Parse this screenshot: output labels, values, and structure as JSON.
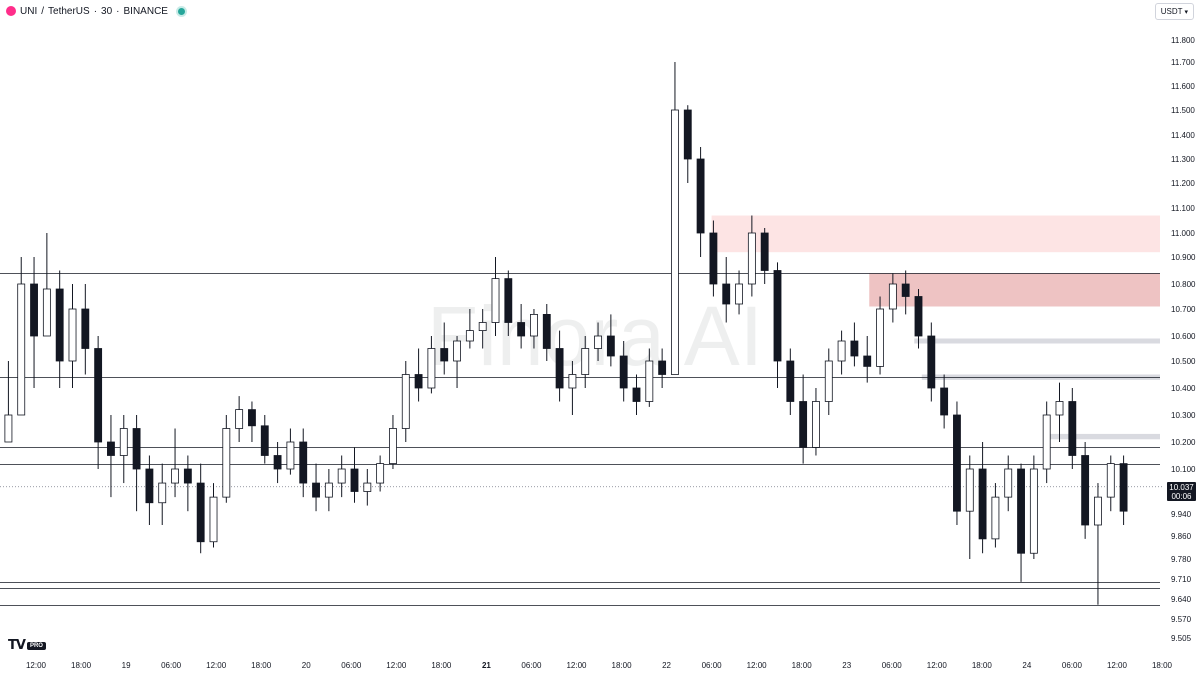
{
  "header": {
    "symbol": "UNI",
    "separator": "/",
    "quote": "TetherUS",
    "interval": "30",
    "exchange": "BINANCE"
  },
  "currency_button": {
    "label": "USDT"
  },
  "watermark": "Finora AI",
  "logo": {
    "mark": "TV",
    "badge": "PRO"
  },
  "last_price": {
    "price": "10.037",
    "countdown": "00:06"
  },
  "chart_data": {
    "type": "candlestick",
    "y_ticks": [
      "11.800",
      "11.700",
      "11.600",
      "11.500",
      "11.400",
      "11.300",
      "11.200",
      "11.100",
      "11.000",
      "10.900",
      "10.800",
      "10.700",
      "10.600",
      "10.500",
      "10.400",
      "10.300",
      "10.200",
      "10.100",
      "9.940",
      "9.860",
      "9.780",
      "9.710",
      "9.640",
      "9.570",
      "9.505"
    ],
    "x_ticks": [
      "12:00",
      "18:00",
      "19",
      "06:00",
      "12:00",
      "18:00",
      "20",
      "06:00",
      "12:00",
      "18:00",
      "21",
      "06:00",
      "12:00",
      "18:00",
      "22",
      "06:00",
      "12:00",
      "18:00",
      "23",
      "06:00",
      "12:00",
      "18:00",
      "24",
      "06:00",
      "12:00",
      "18:00"
    ],
    "bold_x_ticks": [
      "21"
    ],
    "horizontal_levels": [
      10.84,
      10.44,
      10.18,
      10.12,
      9.7,
      9.68,
      9.62
    ],
    "zones": [
      {
        "x_start": "22 06:00",
        "x_end": "24 18:00",
        "y_low": 10.92,
        "y_high": 11.07,
        "color": "#fde4e4"
      },
      {
        "x_start": "23 03:00",
        "x_end": "24 18:00",
        "y_low": 10.71,
        "y_high": 10.84,
        "color": "#eec3c3"
      },
      {
        "x_start": "23 09:00",
        "x_end": "24 18:00",
        "y_low": 10.57,
        "y_high": 10.59,
        "color": "#d9dae0"
      },
      {
        "x_start": "23 10:00",
        "x_end": "24 18:00",
        "y_low": 10.43,
        "y_high": 10.45,
        "color": "#d9dae0"
      },
      {
        "x_start": "24 03:00",
        "x_end": "24 18:00",
        "y_low": 10.21,
        "y_high": 10.23,
        "color": "#d9dae0"
      }
    ],
    "candles": [
      [
        10.2,
        10.5,
        10.2,
        10.3
      ],
      [
        10.3,
        10.9,
        10.3,
        10.8
      ],
      [
        10.8,
        10.9,
        10.4,
        10.6
      ],
      [
        10.6,
        11.0,
        10.6,
        10.78
      ],
      [
        10.78,
        10.85,
        10.4,
        10.5
      ],
      [
        10.5,
        10.8,
        10.4,
        10.7
      ],
      [
        10.7,
        10.8,
        10.45,
        10.55
      ],
      [
        10.55,
        10.6,
        10.1,
        10.2
      ],
      [
        10.2,
        10.3,
        10.0,
        10.15
      ],
      [
        10.15,
        10.3,
        10.05,
        10.25
      ],
      [
        10.25,
        10.3,
        9.95,
        10.1
      ],
      [
        10.1,
        10.15,
        9.9,
        9.98
      ],
      [
        9.98,
        10.12,
        9.9,
        10.05
      ],
      [
        10.05,
        10.25,
        10.0,
        10.1
      ],
      [
        10.1,
        10.15,
        9.95,
        10.05
      ],
      [
        10.05,
        10.12,
        9.8,
        9.84
      ],
      [
        9.84,
        10.05,
        9.82,
        10.0
      ],
      [
        10.0,
        10.3,
        9.98,
        10.25
      ],
      [
        10.25,
        10.37,
        10.2,
        10.32
      ],
      [
        10.32,
        10.35,
        10.2,
        10.26
      ],
      [
        10.26,
        10.3,
        10.12,
        10.15
      ],
      [
        10.15,
        10.2,
        10.05,
        10.1
      ],
      [
        10.1,
        10.25,
        10.08,
        10.2
      ],
      [
        10.2,
        10.25,
        10.0,
        10.05
      ],
      [
        10.05,
        10.12,
        9.95,
        10.0
      ],
      [
        10.0,
        10.1,
        9.95,
        10.05
      ],
      [
        10.05,
        10.15,
        10.0,
        10.1
      ],
      [
        10.1,
        10.18,
        9.98,
        10.02
      ],
      [
        10.02,
        10.1,
        9.97,
        10.05
      ],
      [
        10.05,
        10.15,
        10.02,
        10.12
      ],
      [
        10.12,
        10.3,
        10.1,
        10.25
      ],
      [
        10.25,
        10.5,
        10.2,
        10.45
      ],
      [
        10.45,
        10.55,
        10.35,
        10.4
      ],
      [
        10.4,
        10.6,
        10.38,
        10.55
      ],
      [
        10.55,
        10.65,
        10.45,
        10.5
      ],
      [
        10.5,
        10.6,
        10.4,
        10.58
      ],
      [
        10.58,
        10.7,
        10.55,
        10.62
      ],
      [
        10.62,
        10.7,
        10.55,
        10.65
      ],
      [
        10.65,
        10.9,
        10.6,
        10.82
      ],
      [
        10.82,
        10.85,
        10.6,
        10.65
      ],
      [
        10.65,
        10.72,
        10.55,
        10.6
      ],
      [
        10.6,
        10.7,
        10.55,
        10.68
      ],
      [
        10.68,
        10.72,
        10.5,
        10.55
      ],
      [
        10.55,
        10.62,
        10.35,
        10.4
      ],
      [
        10.4,
        10.5,
        10.3,
        10.45
      ],
      [
        10.45,
        10.6,
        10.4,
        10.55
      ],
      [
        10.55,
        10.65,
        10.5,
        10.6
      ],
      [
        10.6,
        10.68,
        10.48,
        10.52
      ],
      [
        10.52,
        10.58,
        10.35,
        10.4
      ],
      [
        10.4,
        10.45,
        10.3,
        10.35
      ],
      [
        10.35,
        10.55,
        10.33,
        10.5
      ],
      [
        10.5,
        10.55,
        10.4,
        10.45
      ],
      [
        10.45,
        11.7,
        10.45,
        11.5
      ],
      [
        11.5,
        11.52,
        11.2,
        11.3
      ],
      [
        11.3,
        11.35,
        10.9,
        11.0
      ],
      [
        11.0,
        11.05,
        10.75,
        10.8
      ],
      [
        10.8,
        10.9,
        10.65,
        10.72
      ],
      [
        10.72,
        10.85,
        10.68,
        10.8
      ],
      [
        10.8,
        11.07,
        10.75,
        11.0
      ],
      [
        11.0,
        11.02,
        10.8,
        10.85
      ],
      [
        10.85,
        10.88,
        10.4,
        10.5
      ],
      [
        10.5,
        10.55,
        10.3,
        10.35
      ],
      [
        10.35,
        10.45,
        10.12,
        10.18
      ],
      [
        10.18,
        10.4,
        10.15,
        10.35
      ],
      [
        10.35,
        10.55,
        10.3,
        10.5
      ],
      [
        10.5,
        10.62,
        10.45,
        10.58
      ],
      [
        10.58,
        10.65,
        10.48,
        10.52
      ],
      [
        10.52,
        10.6,
        10.42,
        10.48
      ],
      [
        10.48,
        10.75,
        10.45,
        10.7
      ],
      [
        10.7,
        10.84,
        10.65,
        10.8
      ],
      [
        10.8,
        10.85,
        10.68,
        10.75
      ],
      [
        10.75,
        10.78,
        10.55,
        10.6
      ],
      [
        10.6,
        10.65,
        10.35,
        10.4
      ],
      [
        10.4,
        10.45,
        10.25,
        10.3
      ],
      [
        10.3,
        10.35,
        9.9,
        9.95
      ],
      [
        9.95,
        10.15,
        9.78,
        10.1
      ],
      [
        10.1,
        10.2,
        9.8,
        9.85
      ],
      [
        9.85,
        10.05,
        9.82,
        10.0
      ],
      [
        10.0,
        10.15,
        9.95,
        10.1
      ],
      [
        10.1,
        10.12,
        9.7,
        9.8
      ],
      [
        9.8,
        10.15,
        9.78,
        10.1
      ],
      [
        10.1,
        10.35,
        10.05,
        10.3
      ],
      [
        10.3,
        10.42,
        10.2,
        10.35
      ],
      [
        10.35,
        10.4,
        10.1,
        10.15
      ],
      [
        10.15,
        10.2,
        9.85,
        9.9
      ],
      [
        9.9,
        10.05,
        9.62,
        10.0
      ],
      [
        10.0,
        10.15,
        9.95,
        10.12
      ],
      [
        10.12,
        10.15,
        9.9,
        9.95
      ]
    ],
    "last_price_line": 10.037,
    "y_range": [
      9.505,
      11.85
    ]
  }
}
